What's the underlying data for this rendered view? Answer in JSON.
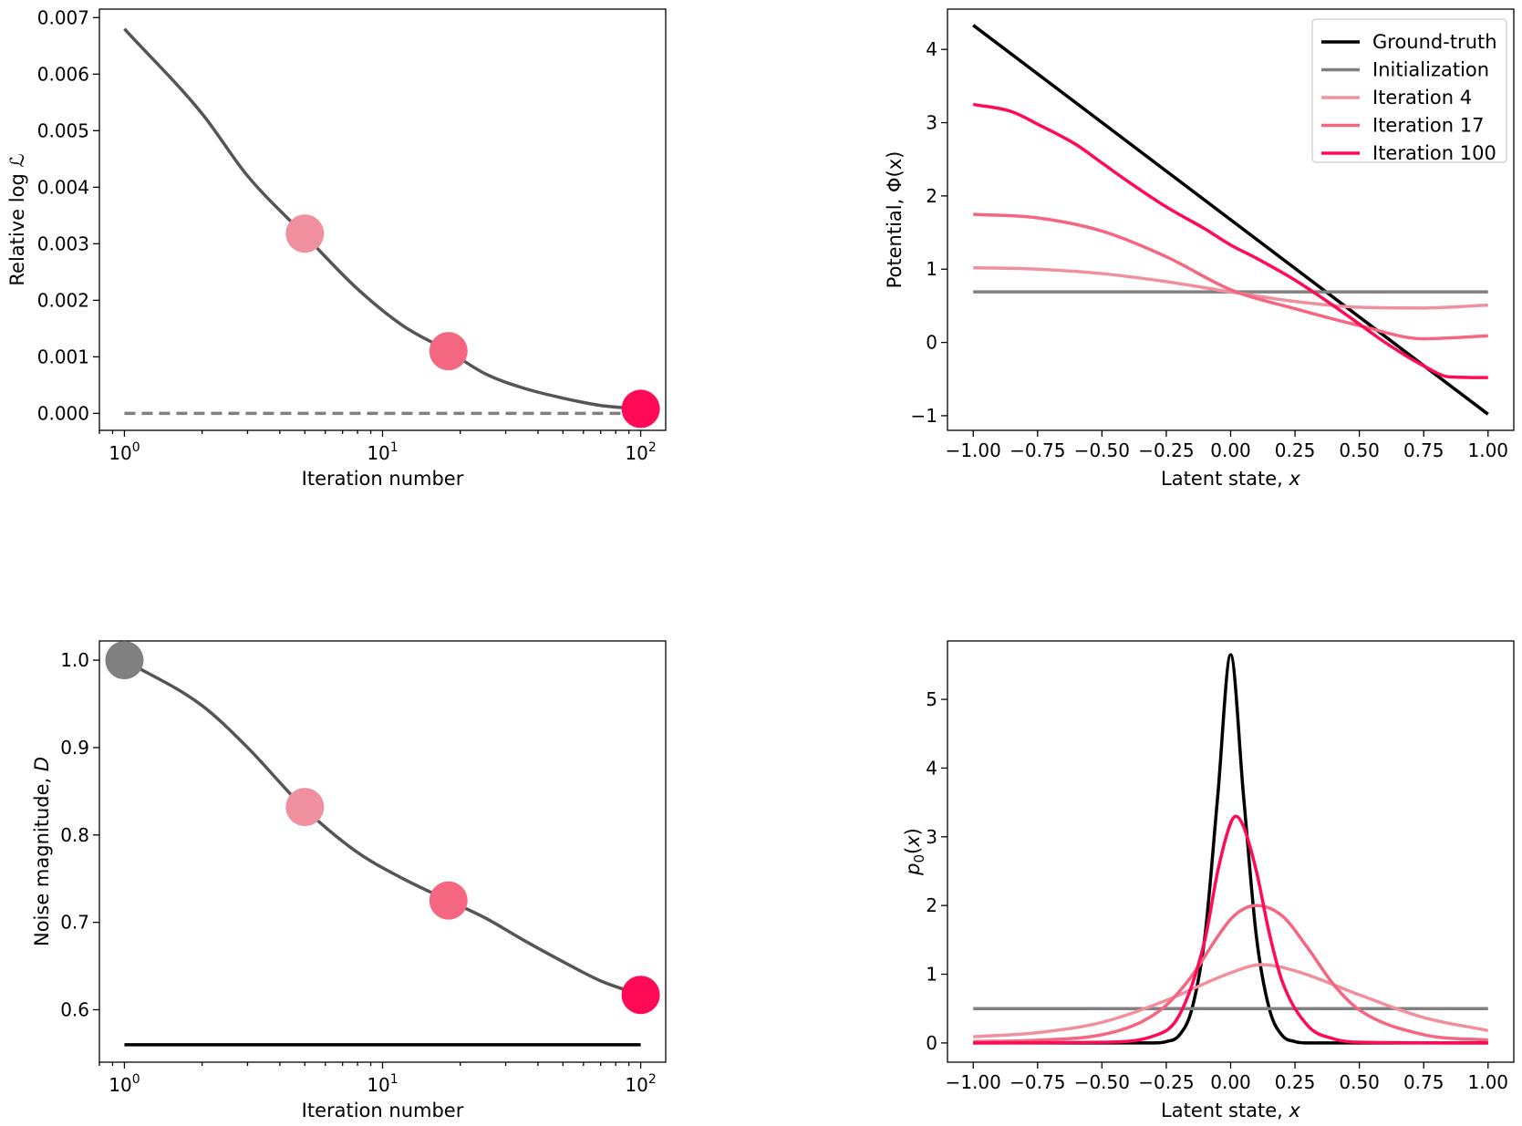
{
  "chart_data": [
    {
      "id": "loglik",
      "type": "line",
      "xscale": "log",
      "xlabel": "Iteration number",
      "ylabel": "Relative log ℒ",
      "xlim": [
        0.8,
        125
      ],
      "ylim": [
        -0.0003,
        0.00715
      ],
      "xticks": [
        {
          "value": 1,
          "base": "10",
          "exp": "0"
        },
        {
          "value": 10,
          "base": "10",
          "exp": "1"
        },
        {
          "value": 100,
          "base": "10",
          "exp": "2"
        }
      ],
      "yticks": [
        {
          "value": 0,
          "label": "0.000"
        },
        {
          "value": 0.001,
          "label": "0.001"
        },
        {
          "value": 0.002,
          "label": "0.002"
        },
        {
          "value": 0.003,
          "label": "0.003"
        },
        {
          "value": 0.004,
          "label": "0.004"
        },
        {
          "value": 0.005,
          "label": "0.005"
        },
        {
          "value": 0.006,
          "label": "0.006"
        },
        {
          "value": 0.007,
          "label": "0.007"
        }
      ],
      "series": [
        {
          "color": "#555555",
          "width": 3.5,
          "dash": "none",
          "x": [
            1,
            2,
            3,
            5,
            8,
            12,
            18,
            25,
            35,
            50,
            70,
            100
          ],
          "y": [
            0.0068,
            0.0053,
            0.0042,
            0.00315,
            0.0022,
            0.00155,
            0.0011,
            0.0007,
            0.00045,
            0.00027,
            0.00014,
            8e-05
          ]
        },
        {
          "color": "#808080",
          "width": 3.5,
          "dash": "12,7",
          "x": [
            1,
            100
          ],
          "y": [
            0,
            0
          ]
        }
      ],
      "markers": [
        {
          "x": 5,
          "y": 0.00318,
          "color": "#f0909e"
        },
        {
          "x": 18,
          "y": 0.0011,
          "color": "#f56680"
        },
        {
          "x": 100,
          "y": 8e-05,
          "color": "#ff0a54"
        }
      ]
    },
    {
      "id": "potential",
      "type": "line",
      "xlabel_text": "Latent state, ",
      "xlabel_var": "x",
      "ylabel": "Potential, Φ(x)",
      "xlim": [
        -1.1,
        1.1
      ],
      "ylim": [
        -1.2,
        4.55
      ],
      "xticks": [
        {
          "value": -1,
          "label": "−1.00"
        },
        {
          "value": -0.75,
          "label": "−0.75"
        },
        {
          "value": -0.5,
          "label": "−0.50"
        },
        {
          "value": -0.25,
          "label": "−0.25"
        },
        {
          "value": 0,
          "label": "0.00"
        },
        {
          "value": 0.25,
          "label": "0.25"
        },
        {
          "value": 0.5,
          "label": "0.50"
        },
        {
          "value": 0.75,
          "label": "0.75"
        },
        {
          "value": 1,
          "label": "1.00"
        }
      ],
      "yticks": [
        {
          "value": -1,
          "label": "−1"
        },
        {
          "value": 0,
          "label": "0"
        },
        {
          "value": 1,
          "label": "1"
        },
        {
          "value": 2,
          "label": "2"
        },
        {
          "value": 3,
          "label": "3"
        },
        {
          "value": 4,
          "label": "4"
        }
      ],
      "legend": {
        "position": "top-right",
        "entries": [
          {
            "label": "Ground-truth",
            "color": "#000000"
          },
          {
            "label": "Initialization",
            "color": "#808080"
          },
          {
            "label": "Iteration 4",
            "color": "#f0909e"
          },
          {
            "label": "Iteration 17",
            "color": "#f56680"
          },
          {
            "label": "Iteration 100",
            "color": "#ff0a54"
          }
        ]
      },
      "series": [
        {
          "name": "Ground-truth",
          "color": "#000000",
          "width": 3.5,
          "x": [
            -1,
            1
          ],
          "y": [
            4.33,
            -0.98
          ]
        },
        {
          "name": "Initialization",
          "color": "#808080",
          "width": 3.5,
          "x": [
            -1,
            1
          ],
          "y": [
            0.69,
            0.69
          ]
        },
        {
          "name": "Iteration 4",
          "color": "#f0909e",
          "width": 3.5,
          "x": [
            -1,
            -0.75,
            -0.5,
            -0.25,
            0,
            0.25,
            0.5,
            0.75,
            1
          ],
          "y": [
            1.02,
            1.0,
            0.94,
            0.83,
            0.69,
            0.56,
            0.48,
            0.47,
            0.51
          ]
        },
        {
          "name": "Iteration 17",
          "color": "#f56680",
          "width": 3.5,
          "x": [
            -1,
            -0.75,
            -0.5,
            -0.25,
            0,
            0.25,
            0.5,
            0.75,
            1
          ],
          "y": [
            1.75,
            1.7,
            1.52,
            1.17,
            0.72,
            0.46,
            0.23,
            0.05,
            0.09
          ]
        },
        {
          "name": "Iteration 100",
          "color": "#ff0a54",
          "width": 3.5,
          "x": [
            -1,
            -0.85,
            -0.75,
            -0.6,
            -0.5,
            -0.4,
            -0.25,
            -0.1,
            0,
            0.1,
            0.25,
            0.4,
            0.5,
            0.6,
            0.75,
            0.85,
            1
          ],
          "y": [
            3.25,
            3.15,
            2.98,
            2.7,
            2.45,
            2.2,
            1.85,
            1.55,
            1.33,
            1.15,
            0.85,
            0.5,
            0.25,
            0.0,
            -0.32,
            -0.47,
            -0.48
          ]
        }
      ]
    },
    {
      "id": "noise",
      "type": "line",
      "xscale": "log",
      "xlabel": "Iteration number",
      "ylabel_text": "Noise magnitude, ",
      "ylabel_var": "D",
      "xlim": [
        0.8,
        125
      ],
      "ylim": [
        0.54,
        1.022
      ],
      "xticks": [
        {
          "value": 1,
          "base": "10",
          "exp": "0"
        },
        {
          "value": 10,
          "base": "10",
          "exp": "1"
        },
        {
          "value": 100,
          "base": "10",
          "exp": "2"
        }
      ],
      "yticks": [
        {
          "value": 0.6,
          "label": "0.6"
        },
        {
          "value": 0.7,
          "label": "0.7"
        },
        {
          "value": 0.8,
          "label": "0.8"
        },
        {
          "value": 0.9,
          "label": "0.9"
        },
        {
          "value": 1.0,
          "label": "1.0"
        }
      ],
      "series": [
        {
          "color": "#555555",
          "width": 3.5,
          "dash": "none",
          "x": [
            1,
            2,
            3,
            5,
            8,
            12,
            18,
            25,
            35,
            50,
            70,
            100
          ],
          "y": [
            1.0,
            0.948,
            0.9,
            0.83,
            0.78,
            0.75,
            0.725,
            0.705,
            0.68,
            0.655,
            0.633,
            0.617
          ]
        },
        {
          "color": "#000000",
          "width": 3.5,
          "dash": "none",
          "x": [
            1,
            100
          ],
          "y": [
            0.56,
            0.56
          ]
        }
      ],
      "markers": [
        {
          "x": 1,
          "y": 1.0,
          "color": "#808080"
        },
        {
          "x": 5,
          "y": 0.832,
          "color": "#f0909e"
        },
        {
          "x": 18,
          "y": 0.725,
          "color": "#f56680"
        },
        {
          "x": 100,
          "y": 0.617,
          "color": "#ff0a54"
        }
      ]
    },
    {
      "id": "density",
      "type": "line",
      "xlabel_text": "Latent state, ",
      "xlabel_var": "x",
      "ylabel": "p0(x)",
      "xlim": [
        -1.1,
        1.1
      ],
      "ylim": [
        -0.28,
        5.85
      ],
      "xticks": [
        {
          "value": -1,
          "label": "−1.00"
        },
        {
          "value": -0.75,
          "label": "−0.75"
        },
        {
          "value": -0.5,
          "label": "−0.50"
        },
        {
          "value": -0.25,
          "label": "−0.25"
        },
        {
          "value": 0,
          "label": "0.00"
        },
        {
          "value": 0.25,
          "label": "0.25"
        },
        {
          "value": 0.5,
          "label": "0.50"
        },
        {
          "value": 0.75,
          "label": "0.75"
        },
        {
          "value": 1,
          "label": "1.00"
        }
      ],
      "yticks": [
        {
          "value": 0,
          "label": "0"
        },
        {
          "value": 1,
          "label": "1"
        },
        {
          "value": 2,
          "label": "2"
        },
        {
          "value": 3,
          "label": "3"
        },
        {
          "value": 4,
          "label": "4"
        },
        {
          "value": 5,
          "label": "5"
        }
      ],
      "series": [
        {
          "name": "Ground-truth",
          "color": "#000000",
          "width": 3.5,
          "x": [
            -1,
            -0.3,
            -0.25,
            -0.2,
            -0.15,
            -0.1,
            -0.05,
            0,
            0.05,
            0.1,
            0.15,
            0.2,
            0.25,
            0.3,
            1
          ],
          "y": [
            0,
            0,
            0.02,
            0.11,
            0.5,
            1.55,
            3.6,
            5.65,
            3.6,
            1.55,
            0.5,
            0.11,
            0.02,
            0,
            0
          ]
        },
        {
          "name": "Initialization",
          "color": "#808080",
          "width": 3.5,
          "x": [
            -1,
            1
          ],
          "y": [
            0.5,
            0.5
          ]
        },
        {
          "name": "Iteration 4",
          "color": "#f0909e",
          "width": 3.5,
          "x": [
            -1,
            -0.75,
            -0.5,
            -0.25,
            0,
            0.12,
            0.25,
            0.5,
            0.75,
            1
          ],
          "y": [
            0.09,
            0.15,
            0.3,
            0.62,
            1.02,
            1.14,
            1.05,
            0.7,
            0.37,
            0.18
          ]
        },
        {
          "name": "Iteration 17",
          "color": "#f56680",
          "width": 3.5,
          "x": [
            -1,
            -0.75,
            -0.5,
            -0.35,
            -0.25,
            -0.15,
            -0.05,
            0,
            0.05,
            0.1,
            0.2,
            0.3,
            0.4,
            0.5,
            0.75,
            1
          ],
          "y": [
            0.02,
            0.04,
            0.12,
            0.3,
            0.55,
            0.98,
            1.55,
            1.8,
            1.95,
            2.0,
            1.85,
            1.38,
            0.85,
            0.48,
            0.12,
            0.04
          ]
        },
        {
          "name": "Iteration 100",
          "color": "#ff0a54",
          "width": 3.5,
          "x": [
            -1,
            -0.5,
            -0.3,
            -0.2,
            -0.1,
            -0.05,
            0,
            0.02,
            0.05,
            0.1,
            0.15,
            0.2,
            0.3,
            0.4,
            0.5,
            1
          ],
          "y": [
            0,
            0.01,
            0.1,
            0.4,
            1.5,
            2.5,
            3.2,
            3.3,
            3.15,
            2.5,
            1.6,
            0.9,
            0.25,
            0.06,
            0.01,
            0
          ]
        }
      ]
    }
  ]
}
